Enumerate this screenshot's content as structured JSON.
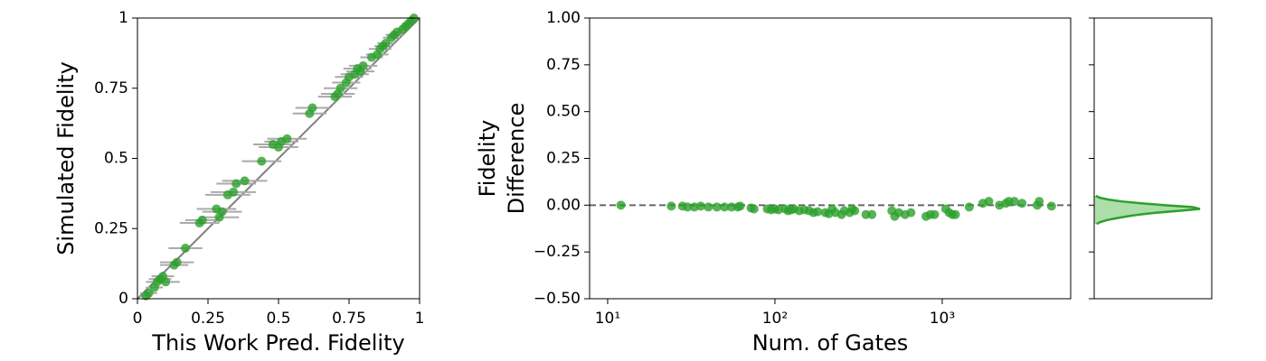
{
  "chart_data": [
    {
      "type": "errorscatter",
      "xlabel": "This Work Pred. Fidelity",
      "ylabel": "Simulated Fidelity",
      "color": "#2ca02c",
      "error_color": "#aaaaaa",
      "identity_line": true,
      "line_color": "#808080",
      "xlim": [
        0,
        1
      ],
      "ylim": [
        0,
        1
      ],
      "xticks": [
        0,
        0.25,
        0.5,
        0.75,
        1
      ],
      "yticks": [
        0,
        0.25,
        0.5,
        0.75,
        1
      ],
      "x": [
        0.03,
        0.04,
        0.06,
        0.07,
        0.08,
        0.09,
        0.1,
        0.13,
        0.14,
        0.17,
        0.22,
        0.23,
        0.28,
        0.29,
        0.3,
        0.32,
        0.34,
        0.35,
        0.38,
        0.44,
        0.48,
        0.5,
        0.51,
        0.53,
        0.61,
        0.62,
        0.7,
        0.71,
        0.72,
        0.74,
        0.75,
        0.77,
        0.78,
        0.79,
        0.8,
        0.83,
        0.85,
        0.86,
        0.87,
        0.88,
        0.9,
        0.91,
        0.92,
        0.94,
        0.95,
        0.96,
        0.97,
        0.98
      ],
      "values": [
        0.01,
        0.02,
        0.04,
        0.06,
        0.07,
        0.08,
        0.06,
        0.12,
        0.13,
        0.18,
        0.27,
        0.28,
        0.32,
        0.29,
        0.31,
        0.37,
        0.38,
        0.41,
        0.42,
        0.49,
        0.55,
        0.54,
        0.56,
        0.57,
        0.66,
        0.68,
        0.72,
        0.73,
        0.75,
        0.77,
        0.79,
        0.8,
        0.82,
        0.81,
        0.83,
        0.86,
        0.87,
        0.89,
        0.9,
        0.91,
        0.93,
        0.94,
        0.95,
        0.96,
        0.97,
        0.98,
        0.99,
        1.0
      ],
      "xerr": [
        0.02,
        0.03,
        0.03,
        0.04,
        0.04,
        0.04,
        0.05,
        0.05,
        0.06,
        0.06,
        0.07,
        0.06,
        0.07,
        0.07,
        0.07,
        0.08,
        0.08,
        0.07,
        0.08,
        0.07,
        0.07,
        0.07,
        0.06,
        0.07,
        0.06,
        0.06,
        0.06,
        0.06,
        0.06,
        0.05,
        0.05,
        0.05,
        0.05,
        0.05,
        0.05,
        0.04,
        0.04,
        0.04,
        0.03,
        0.03,
        0.03,
        0.03,
        0.02,
        0.02,
        0.02,
        0.02,
        0.01,
        0.01
      ]
    },
    {
      "type": "scatter",
      "xlabel": "Num. of Gates",
      "ylabel": [
        "Fidelity",
        "Difference"
      ],
      "color": "#2ca02c",
      "xscale": "log",
      "xlim": [
        7.8,
        5860
      ],
      "xticks": [
        {
          "value": 10,
          "label": "10¹"
        },
        {
          "value": 100,
          "label": "10²"
        },
        {
          "value": 1000,
          "label": "10³"
        }
      ],
      "ylim": [
        -0.5,
        1
      ],
      "yticks": [
        {
          "value": -0.5,
          "label": "−0.50"
        },
        {
          "value": -0.25,
          "label": "−0.25"
        },
        {
          "value": 0,
          "label": "0.00"
        },
        {
          "value": 0.25,
          "label": "0.25"
        },
        {
          "value": 0.5,
          "label": "0.50"
        },
        {
          "value": 0.75,
          "label": "0.75"
        },
        {
          "value": 1,
          "label": "1.00"
        }
      ],
      "hline": 0,
      "hline_color": "#666666",
      "x": [
        12,
        24,
        28,
        30,
        33,
        36,
        40,
        45,
        50,
        55,
        60,
        62,
        72,
        75,
        90,
        95,
        100,
        105,
        115,
        120,
        125,
        130,
        140,
        150,
        160,
        170,
        180,
        200,
        210,
        220,
        230,
        250,
        260,
        280,
        290,
        300,
        350,
        380,
        500,
        520,
        550,
        600,
        650,
        800,
        850,
        900,
        1050,
        1100,
        1150,
        1200,
        1450,
        1750,
        1900,
        2200,
        2400,
        2500,
        2700,
        3000,
        3700,
        3800,
        4500
      ],
      "values": [
        0,
        -0.005,
        -0.005,
        -0.01,
        -0.01,
        -0.005,
        -0.01,
        -0.01,
        -0.01,
        -0.01,
        -0.01,
        -0.005,
        -0.015,
        -0.02,
        -0.02,
        -0.025,
        -0.02,
        -0.025,
        -0.02,
        -0.03,
        -0.025,
        -0.02,
        -0.03,
        -0.025,
        -0.03,
        -0.04,
        -0.035,
        -0.04,
        -0.045,
        -0.02,
        -0.04,
        -0.05,
        -0.03,
        -0.04,
        -0.02,
        -0.03,
        -0.05,
        -0.05,
        -0.03,
        -0.06,
        -0.04,
        -0.05,
        -0.04,
        -0.06,
        -0.05,
        -0.05,
        -0.02,
        -0.04,
        -0.05,
        -0.05,
        -0.01,
        0.01,
        0.02,
        0,
        0.01,
        0.02,
        0.02,
        0.01,
        0,
        0.02,
        -0.005
      ]
    },
    {
      "type": "density",
      "color": "#2ca02c",
      "fill": "#98d594",
      "xlim": [
        0,
        15
      ],
      "ylim": [
        -0.5,
        1
      ],
      "yticks": [
        -0.5,
        -0.25,
        0,
        0.25,
        0.5,
        0.75,
        1
      ],
      "tick_labels": false,
      "y": [
        -0.1,
        -0.09,
        -0.08,
        -0.07,
        -0.06,
        -0.05,
        -0.04,
        -0.03,
        -0.02,
        -0.01,
        0,
        0.01,
        0.02,
        0.03,
        0.04,
        0.05
      ],
      "values": [
        0.3,
        0.8,
        1.6,
        2.8,
        4.2,
        5.8,
        8,
        11,
        13.5,
        12.5,
        9,
        6,
        3.5,
        1.8,
        0.7,
        0.2
      ]
    }
  ]
}
